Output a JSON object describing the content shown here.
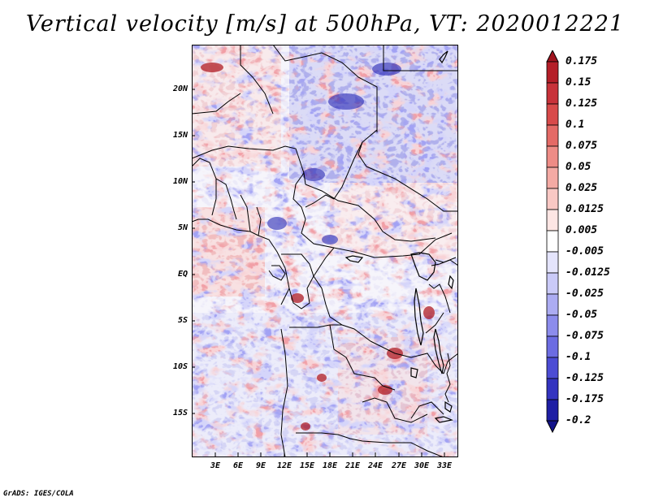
{
  "title": "Vertical velocity [m/s] at 500hPa, VT: 2020012221",
  "footer": "GrADS: IGES/COLA",
  "map": {
    "lat_labels": [
      "20N",
      "15N",
      "10N",
      "5N",
      "EQ",
      "5S",
      "10S",
      "15S"
    ],
    "lon_labels": [
      "3E",
      "6E",
      "9E",
      "12E",
      "15E",
      "18E",
      "21E",
      "24E",
      "27E",
      "30E",
      "33E"
    ]
  },
  "colorbar": {
    "labels": [
      "0.175",
      "0.15",
      "0.125",
      "0.1",
      "0.075",
      "0.05",
      "0.025",
      "0.0125",
      "0.005",
      "-0.005",
      "-0.0125",
      "-0.025",
      "-0.05",
      "-0.075",
      "-0.1",
      "-0.125",
      "-0.175",
      "-0.2"
    ],
    "colors": [
      "#a0141e",
      "#b51e28",
      "#c8323a",
      "#d84a4a",
      "#e46a66",
      "#ee8c86",
      "#f4aaa4",
      "#f9c8c4",
      "#fde6e4",
      "#ffffff",
      "#e4e4fc",
      "#cacaf8",
      "#acacf2",
      "#8c8cec",
      "#6c6ce2",
      "#4c4cd4",
      "#3434c0",
      "#1e1ea4",
      "#12128a"
    ]
  }
}
